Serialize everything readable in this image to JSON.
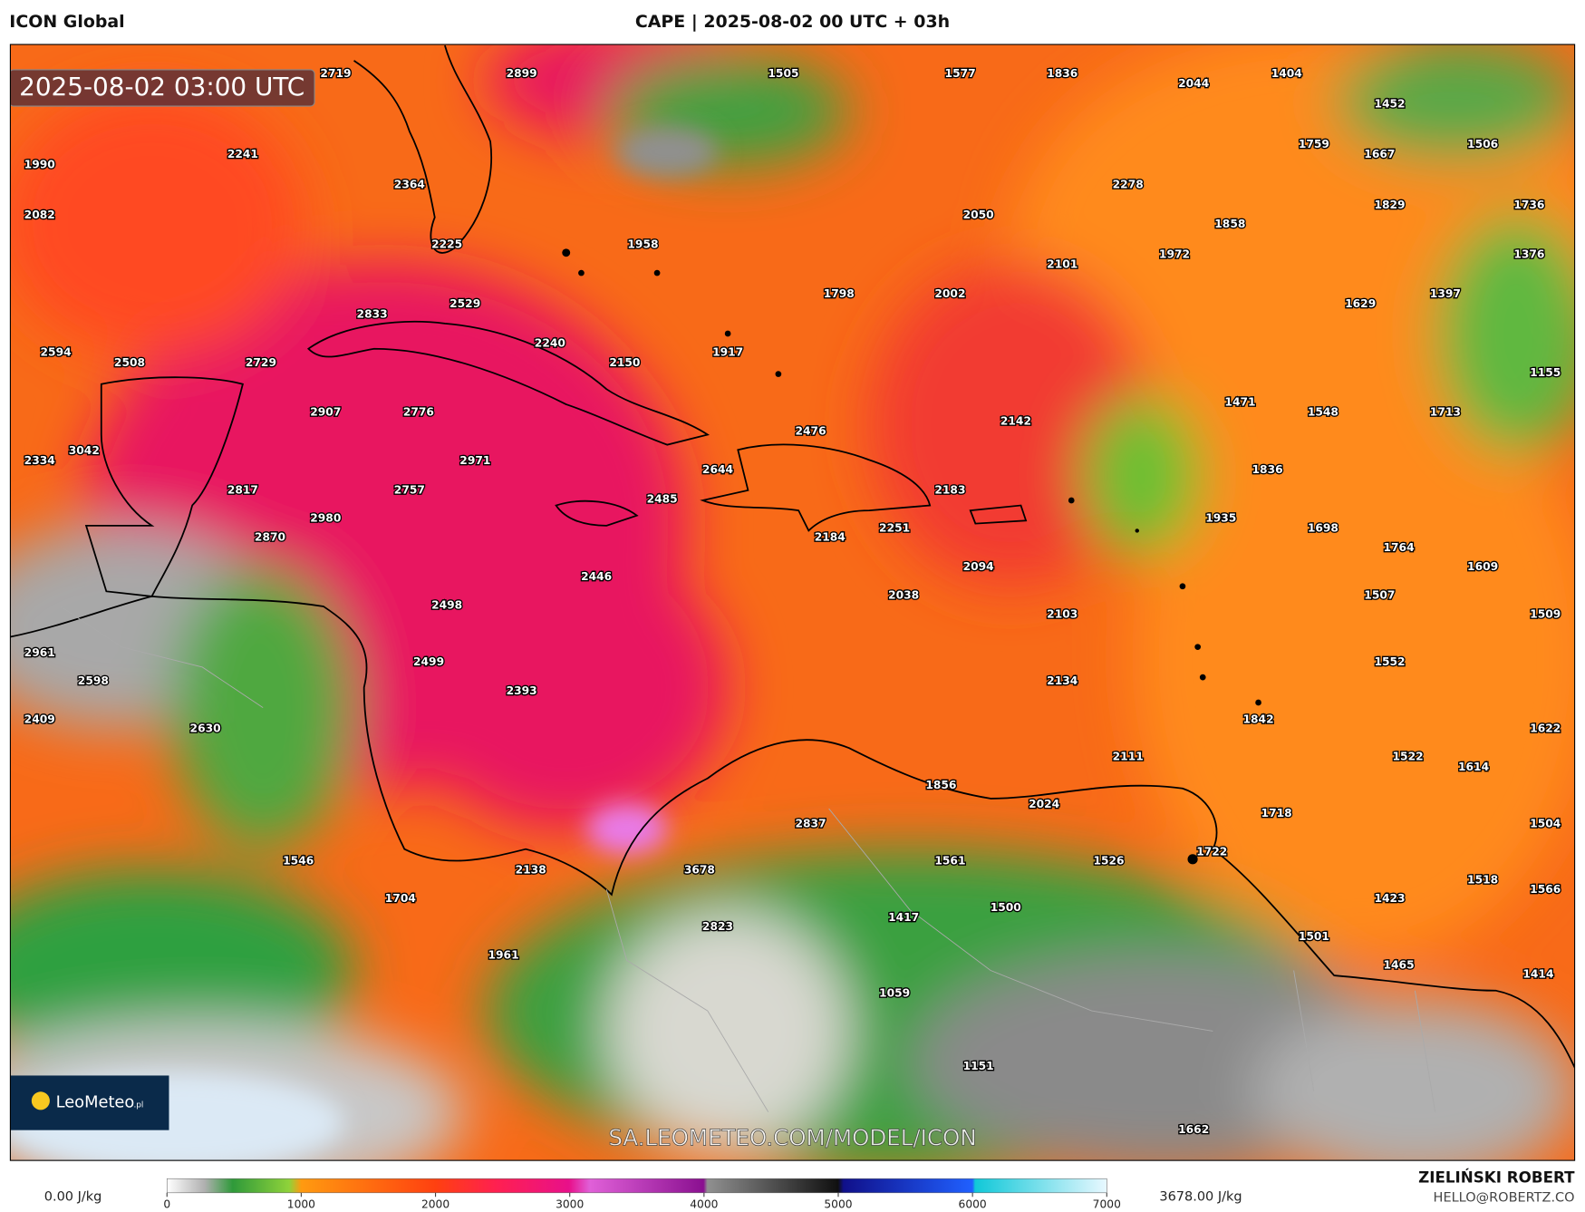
{
  "header": {
    "left": "ICON Global",
    "center": "CAPE | 2025-08-02 00 UTC + 03h"
  },
  "valid_time": "2025-08-02 03:00 UTC",
  "watermark": "SA.LEOMETEO.COM/MODEL/ICON",
  "logo": {
    "name": "LeoMeteo",
    "suffix": ".pl"
  },
  "author": {
    "name": "ZIELIŃSKI ROBERT",
    "email": "HELLO@ROBERTZ.CO"
  },
  "colorbar": {
    "min_label": "0.00 J/kg",
    "max_label": "3678.00 J/kg",
    "ticks": [
      0,
      1000,
      2000,
      3000,
      4000,
      5000,
      6000,
      7000
    ]
  },
  "map_labels": [
    2719,
    2899,
    1505,
    1577,
    1836,
    2044,
    1404,
    1452,
    1990,
    2241,
    2364,
    1759,
    1667,
    1506,
    2082,
    2278,
    2050,
    1829,
    1736,
    2225,
    1958,
    1858,
    1972,
    2101,
    1376,
    1798,
    2002,
    1629,
    1397,
    2529,
    2833,
    2594,
    2508,
    2729,
    2240,
    2150,
    1917,
    1155,
    2907,
    2776,
    1471,
    1548,
    1713,
    2476,
    2142,
    2334,
    3042,
    2971,
    2644,
    1836,
    2817,
    2757,
    2485,
    2183,
    1935,
    1698,
    2980,
    2870,
    2251,
    2184,
    1764,
    1609,
    2446,
    2094,
    2038,
    1507,
    2498,
    2103,
    1509,
    2961,
    2499,
    1552,
    2598,
    2393,
    2134,
    2409,
    1842,
    2630,
    1622,
    2111,
    1522,
    1614,
    1856,
    2024,
    1718,
    2837,
    1504,
    1722,
    1546,
    1561,
    1526,
    2138,
    3678,
    1518,
    1704,
    1566,
    1423,
    1500,
    1417,
    2823,
    1501,
    1961,
    1465,
    1414,
    1059,
    1151,
    1662
  ]
}
